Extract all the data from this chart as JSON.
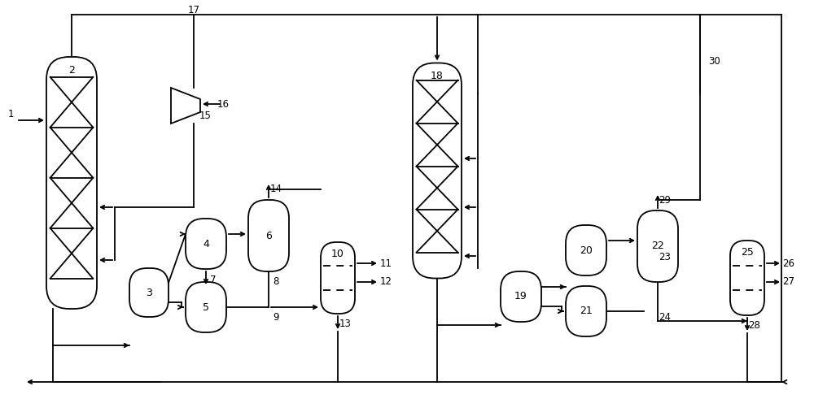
{
  "bg_color": "#ffffff",
  "line_color": "#000000",
  "text_color": "#000000",
  "fig_width": 10.0,
  "fig_height": 4.91,
  "dpi": 100
}
